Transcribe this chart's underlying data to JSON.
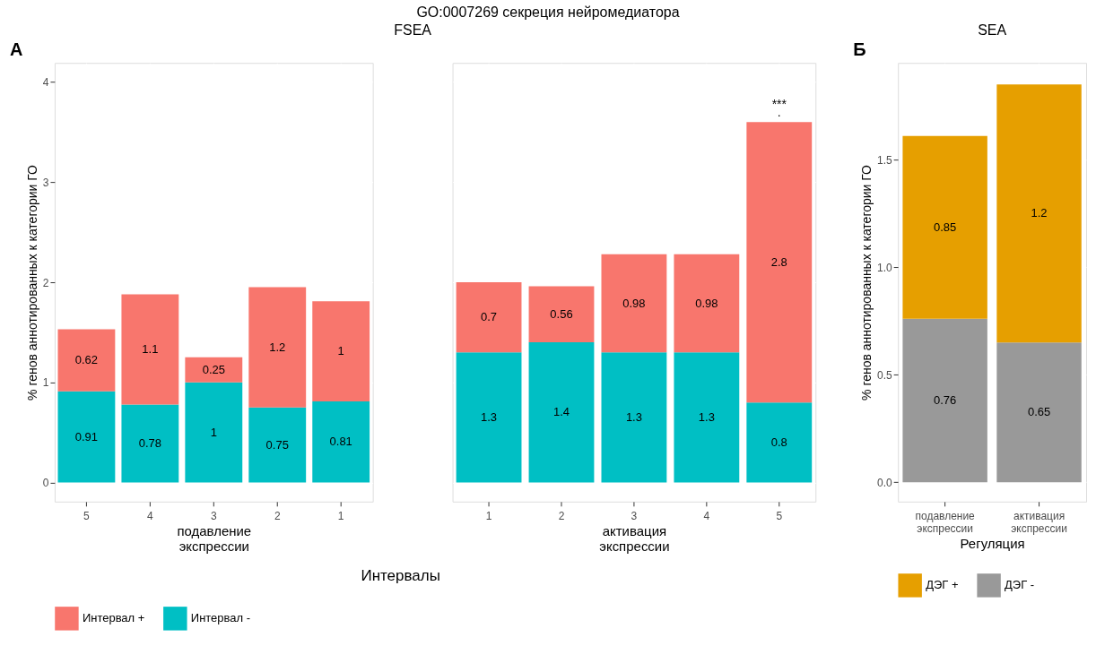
{
  "chart_data": [
    {
      "type": "bar",
      "annotations": [
        "GO:0007269 секреция нейромедиатора",
        "FSEA",
        "A",
        "Интервалы"
      ],
      "xlabel": "подавление экспрессии",
      "ylabel": "% генов аннотированных к категории ГО",
      "categories": [
        "5",
        "4",
        "3",
        "2",
        "1"
      ],
      "stacked": true,
      "data_labels": true,
      "grid": true,
      "legend": "bottom",
      "ylim": [
        -0.19,
        4.19
      ],
      "yticks": [
        0,
        1,
        2,
        3,
        4
      ],
      "series": [
        {
          "name": "Интервал -",
          "color": "#00bfc4",
          "values": [
            0.91,
            0.78,
            1,
            0.75,
            0.81
          ]
        },
        {
          "name": "Интервал +",
          "color": "#f8766d",
          "values": [
            0.62,
            1.1,
            0.25,
            1.2,
            1
          ]
        }
      ]
    },
    {
      "type": "bar",
      "xlabel": "активация экспрессии",
      "categories": [
        "1",
        "2",
        "3",
        "4",
        "5"
      ],
      "stacked": true,
      "data_labels": true,
      "grid": true,
      "ylim": [
        -0.19,
        4.19
      ],
      "yticks": [
        0,
        1,
        2,
        3,
        4
      ],
      "tick_labels": "x",
      "annotations": [
        "***",
        "."
      ],
      "series": [
        {
          "name": "Интервал -",
          "color": "#00bfc4",
          "values": [
            1.3,
            1.4,
            1.3,
            1.3,
            0.8
          ]
        },
        {
          "name": "Интервал +",
          "color": "#f8766d",
          "values": [
            0.7,
            0.56,
            0.98,
            0.98,
            2.8
          ]
        }
      ]
    },
    {
      "type": "bar",
      "title": "SEA",
      "xlabel": "Регуляция",
      "ylabel": "% генов аннотированных к категории ГО",
      "categories": [
        "подавление экспрессии",
        "активация экспрессии"
      ],
      "stacked": true,
      "data_labels": true,
      "grid": true,
      "legend": "bottom",
      "ylim": [
        -0.09,
        1.95
      ],
      "yticks": [
        {
          "value": 0,
          "label": "0.0"
        },
        0.5,
        {
          "value": 1,
          "label": "1.0"
        },
        1.5
      ],
      "annotations": [
        "Б"
      ],
      "series": [
        {
          "name": "ДЭГ -",
          "color": "#999999",
          "values": [
            0.76,
            0.65
          ]
        },
        {
          "name": "ДЭГ +",
          "color": "#e69f00",
          "values": [
            0.85,
            1.2
          ]
        }
      ]
    }
  ]
}
